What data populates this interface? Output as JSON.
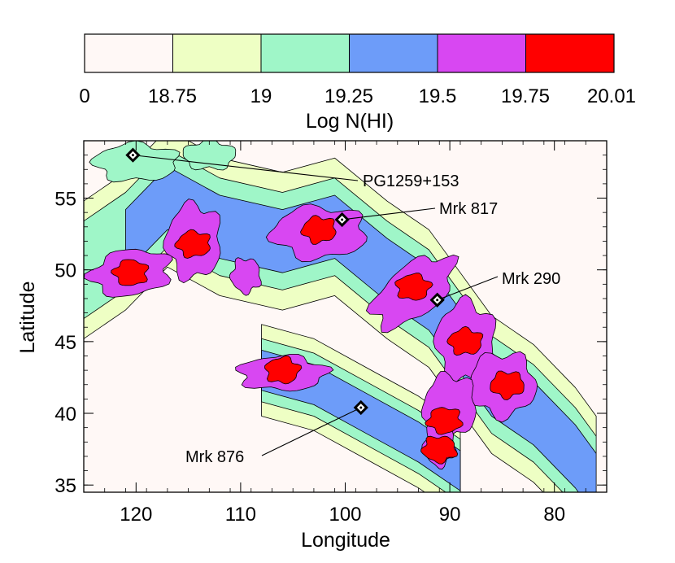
{
  "chart_data": {
    "type": "heatmap",
    "title": "",
    "xlabel": "Longitude",
    "ylabel": "Latitude",
    "xlim": [
      125,
      75
    ],
    "ylim": [
      34.5,
      59
    ],
    "x_ticks": [
      120,
      110,
      100,
      90,
      80
    ],
    "y_ticks": [
      35,
      40,
      45,
      50,
      55
    ],
    "grid": false,
    "colorbar": {
      "title": "Log N(HI)",
      "tick_labels": [
        "0",
        "18.75",
        "19",
        "19.25",
        "19.5",
        "19.75",
        "20.01"
      ],
      "levels": [
        0,
        18.75,
        19,
        19.25,
        19.5,
        19.75,
        20.01
      ],
      "colors": [
        "#fff8f6",
        "#eeffc4",
        "#9ff6c8",
        "#6d9cf9",
        "#d847f2",
        "#ff0000"
      ]
    },
    "sources": [
      {
        "name": "PG1259+153",
        "lon": 120.3,
        "lat": 58.0
      },
      {
        "name": "Mrk 817",
        "lon": 100.3,
        "lat": 53.5
      },
      {
        "name": "Mrk 290",
        "lon": 91.2,
        "lat": 47.9
      },
      {
        "name": "Mrk 876",
        "lon": 98.5,
        "lat": 40.4
      }
    ],
    "regions": [
      {
        "lon": 120.5,
        "lat": 49.8,
        "level": 19.75
      },
      {
        "lon": 114.5,
        "lat": 51.8,
        "level": 19.75
      },
      {
        "lon": 102.5,
        "lat": 52.8,
        "level": 19.75
      },
      {
        "lon": 93.5,
        "lat": 48.8,
        "level": 19.75
      },
      {
        "lon": 88.5,
        "lat": 45.0,
        "level": 19.75
      },
      {
        "lon": 84.5,
        "lat": 42.0,
        "level": 19.75
      },
      {
        "lon": 90.5,
        "lat": 39.5,
        "level": 19.75
      },
      {
        "lon": 91.0,
        "lat": 37.5,
        "level": 19.75
      },
      {
        "lon": 106.0,
        "lat": 43.0,
        "level": 19.75
      }
    ]
  }
}
